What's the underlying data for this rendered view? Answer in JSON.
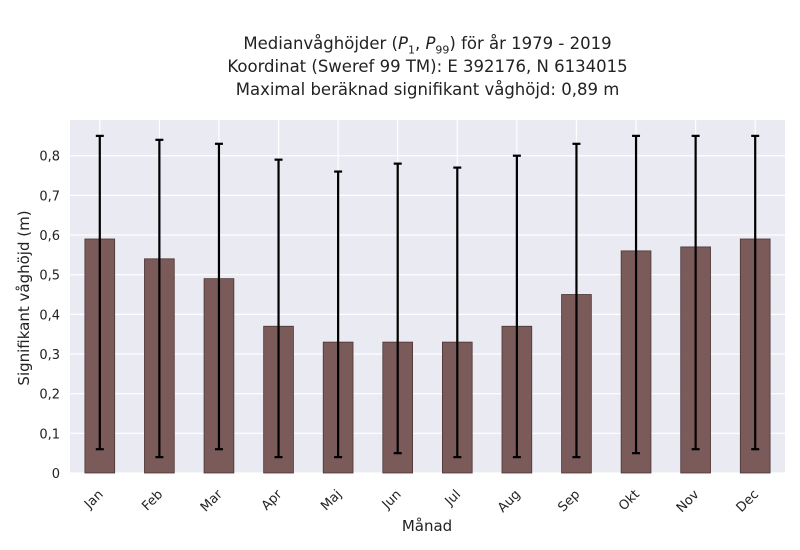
{
  "chart_data": {
    "type": "bar",
    "title_lines": [
      "Medianvåghöjder (P1, P99) för år 1979 - 2019",
      "Koordinat (Sweref 99 TM): E 392176, N 6134015",
      "Maximal beräknad signifikant våghöjd: 0,89 m"
    ],
    "xlabel": "Månad",
    "ylabel": "Signifikant våghöjd (m)",
    "categories": [
      "Jan",
      "Feb",
      "Mar",
      "Apr",
      "Maj",
      "Jun",
      "Jul",
      "Aug",
      "Sep",
      "Okt",
      "Nov",
      "Dec"
    ],
    "values": [
      0.59,
      0.54,
      0.49,
      0.37,
      0.33,
      0.33,
      0.33,
      0.37,
      0.45,
      0.56,
      0.57,
      0.59
    ],
    "p1": [
      0.06,
      0.04,
      0.06,
      0.04,
      0.04,
      0.05,
      0.04,
      0.04,
      0.04,
      0.05,
      0.06,
      0.06
    ],
    "p99": [
      0.85,
      0.84,
      0.83,
      0.79,
      0.76,
      0.78,
      0.77,
      0.8,
      0.83,
      0.85,
      0.85,
      0.85
    ],
    "yticks": [
      "0",
      "0,1",
      "0,2",
      "0,3",
      "0,4",
      "0,5",
      "0,6",
      "0,7",
      "0,8"
    ],
    "ylim": [
      0,
      0.89
    ],
    "grid": true,
    "colors": {
      "bar": "#7b5a5a",
      "bar_edge": "#4a3535",
      "errorbar": "#000000",
      "plot_bg": "#eaeaf2",
      "grid": "#ffffff"
    }
  }
}
